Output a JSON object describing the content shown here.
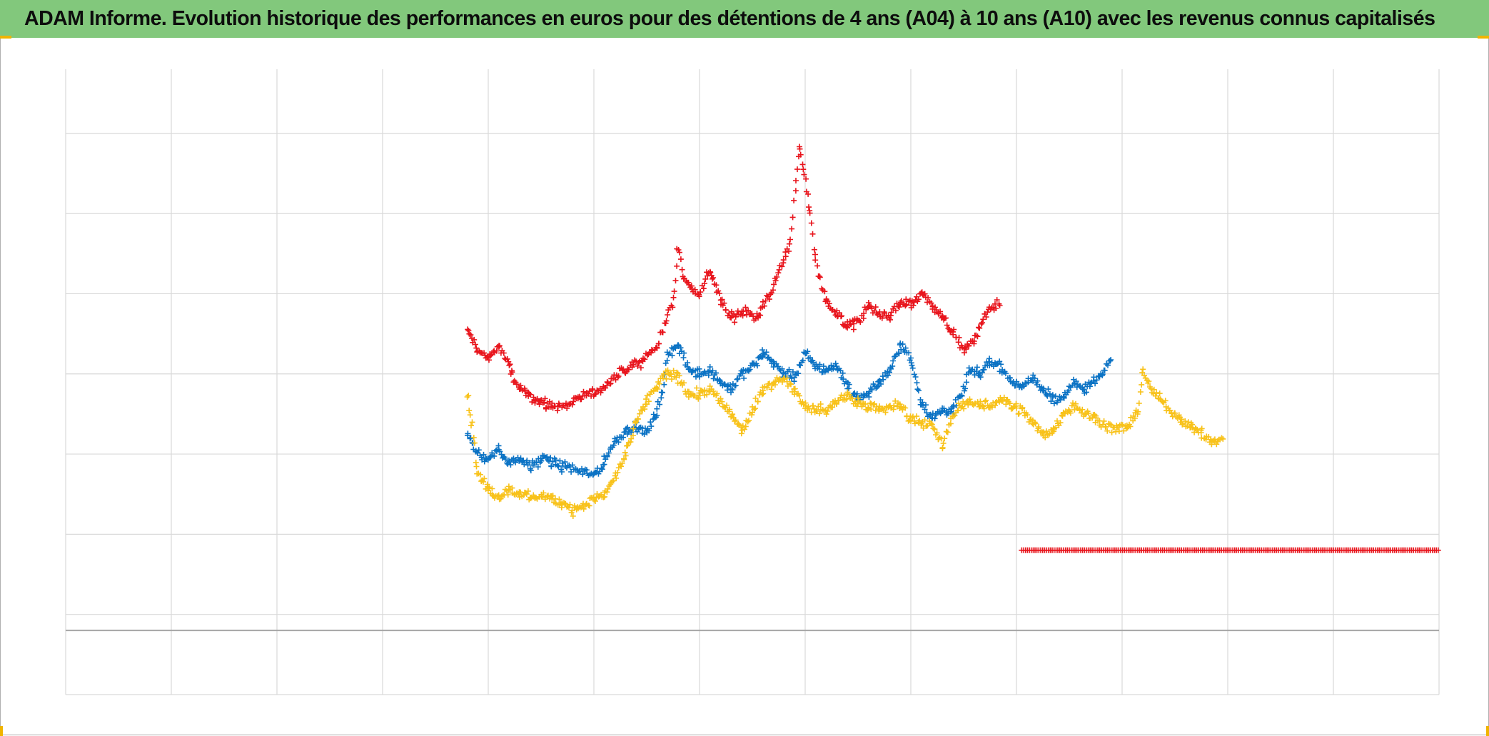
{
  "title": "ADAM Informe. Evolution historique des performances en euros pour des détentions de 4 ans (A04) à 10 ans (A10) avec les revenus connus capitalisés",
  "colors": {
    "title_bg": "#82c87c",
    "gridline": "#d9d9d9",
    "axis": "#a6a6a6",
    "corner_accent": "#f0b400"
  },
  "chart_data": {
    "type": "scatter",
    "title": "ADAM Informe. Evolution historique des performances en euros pour des détentions de 4 ans (A04) à 10 ans (A10) avec les revenus connus capitalisés",
    "xlabel": "",
    "ylabel": "",
    "tick_labels_shown": false,
    "x_grid_divisions": 13,
    "xlim": [
      0,
      13
    ],
    "ylim": [
      -0.8,
      7
    ],
    "grid": true,
    "legend": "none",
    "marker": "plus",
    "series": [
      {
        "color": "#e8141c",
        "points": [
          [
            3.8,
            3.75
          ],
          [
            3.9,
            3.5
          ],
          [
            4.0,
            3.4
          ],
          [
            4.1,
            3.55
          ],
          [
            4.2,
            3.3
          ],
          [
            4.25,
            3.1
          ],
          [
            4.35,
            2.95
          ],
          [
            4.45,
            2.9
          ],
          [
            4.55,
            2.8
          ],
          [
            4.7,
            2.8
          ],
          [
            4.85,
            2.9
          ],
          [
            5.0,
            2.95
          ],
          [
            5.15,
            3.1
          ],
          [
            5.3,
            3.25
          ],
          [
            5.45,
            3.35
          ],
          [
            5.6,
            3.55
          ],
          [
            5.75,
            4.1
          ],
          [
            5.8,
            4.8
          ],
          [
            5.85,
            4.4
          ],
          [
            5.9,
            4.3
          ],
          [
            6.0,
            4.2
          ],
          [
            6.1,
            4.5
          ],
          [
            6.2,
            4.1
          ],
          [
            6.3,
            3.9
          ],
          [
            6.45,
            4.0
          ],
          [
            6.55,
            3.9
          ],
          [
            6.7,
            4.3
          ],
          [
            6.85,
            4.8
          ],
          [
            6.95,
            6.0
          ],
          [
            7.0,
            5.6
          ],
          [
            7.05,
            5.2
          ],
          [
            7.1,
            4.6
          ],
          [
            7.2,
            4.1
          ],
          [
            7.3,
            3.95
          ],
          [
            7.4,
            3.8
          ],
          [
            7.5,
            3.85
          ],
          [
            7.6,
            4.05
          ],
          [
            7.7,
            3.95
          ],
          [
            7.8,
            3.9
          ],
          [
            7.9,
            4.1
          ],
          [
            8.0,
            4.05
          ],
          [
            8.1,
            4.2
          ],
          [
            8.2,
            4.05
          ],
          [
            8.3,
            3.9
          ],
          [
            8.4,
            3.7
          ],
          [
            8.5,
            3.5
          ],
          [
            8.6,
            3.6
          ],
          [
            8.7,
            3.95
          ],
          [
            8.85,
            4.1
          ]
        ]
      },
      {
        "color": "#0a72c4",
        "points": [
          [
            3.8,
            2.45
          ],
          [
            3.9,
            2.2
          ],
          [
            4.0,
            2.15
          ],
          [
            4.1,
            2.25
          ],
          [
            4.2,
            2.1
          ],
          [
            4.3,
            2.15
          ],
          [
            4.4,
            2.05
          ],
          [
            4.5,
            2.15
          ],
          [
            4.6,
            2.1
          ],
          [
            4.7,
            2.05
          ],
          [
            4.85,
            2.0
          ],
          [
            5.0,
            1.95
          ],
          [
            5.1,
            2.1
          ],
          [
            5.2,
            2.35
          ],
          [
            5.3,
            2.5
          ],
          [
            5.4,
            2.55
          ],
          [
            5.5,
            2.45
          ],
          [
            5.6,
            2.75
          ],
          [
            5.65,
            2.95
          ],
          [
            5.7,
            3.45
          ],
          [
            5.8,
            3.55
          ],
          [
            5.9,
            3.25
          ],
          [
            6.0,
            3.2
          ],
          [
            6.1,
            3.25
          ],
          [
            6.2,
            3.1
          ],
          [
            6.3,
            3.0
          ],
          [
            6.4,
            3.2
          ],
          [
            6.5,
            3.3
          ],
          [
            6.6,
            3.45
          ],
          [
            6.7,
            3.35
          ],
          [
            6.8,
            3.2
          ],
          [
            6.9,
            3.15
          ],
          [
            7.0,
            3.45
          ],
          [
            7.1,
            3.3
          ],
          [
            7.2,
            3.25
          ],
          [
            7.3,
            3.3
          ],
          [
            7.4,
            3.05
          ],
          [
            7.5,
            2.9
          ],
          [
            7.6,
            2.95
          ],
          [
            7.7,
            3.1
          ],
          [
            7.8,
            3.25
          ],
          [
            7.9,
            3.55
          ],
          [
            8.0,
            3.4
          ],
          [
            8.1,
            2.85
          ],
          [
            8.2,
            2.65
          ],
          [
            8.3,
            2.75
          ],
          [
            8.4,
            2.75
          ],
          [
            8.5,
            3.0
          ],
          [
            8.55,
            3.25
          ],
          [
            8.65,
            3.2
          ],
          [
            8.75,
            3.35
          ],
          [
            8.85,
            3.3
          ],
          [
            8.95,
            3.1
          ],
          [
            9.05,
            3.05
          ],
          [
            9.15,
            3.15
          ],
          [
            9.25,
            3.0
          ],
          [
            9.35,
            2.9
          ],
          [
            9.45,
            2.9
          ],
          [
            9.55,
            3.1
          ],
          [
            9.65,
            3.0
          ],
          [
            9.8,
            3.2
          ],
          [
            9.9,
            3.4
          ]
        ]
      },
      {
        "color": "#f8c21a",
        "points": [
          [
            3.8,
            2.95
          ],
          [
            3.85,
            2.55
          ],
          [
            3.9,
            1.95
          ],
          [
            4.0,
            1.75
          ],
          [
            4.1,
            1.65
          ],
          [
            4.2,
            1.75
          ],
          [
            4.3,
            1.7
          ],
          [
            4.4,
            1.65
          ],
          [
            4.5,
            1.7
          ],
          [
            4.6,
            1.65
          ],
          [
            4.7,
            1.6
          ],
          [
            4.8,
            1.5
          ],
          [
            4.9,
            1.55
          ],
          [
            5.0,
            1.65
          ],
          [
            5.1,
            1.7
          ],
          [
            5.2,
            1.9
          ],
          [
            5.3,
            2.2
          ],
          [
            5.4,
            2.6
          ],
          [
            5.5,
            2.85
          ],
          [
            5.6,
            3.05
          ],
          [
            5.7,
            3.2
          ],
          [
            5.8,
            3.15
          ],
          [
            5.9,
            2.95
          ],
          [
            6.0,
            2.95
          ],
          [
            6.1,
            3.0
          ],
          [
            6.2,
            2.85
          ],
          [
            6.3,
            2.7
          ],
          [
            6.4,
            2.5
          ],
          [
            6.5,
            2.75
          ],
          [
            6.6,
            3.0
          ],
          [
            6.7,
            3.1
          ],
          [
            6.8,
            3.15
          ],
          [
            6.9,
            3.0
          ],
          [
            7.0,
            2.8
          ],
          [
            7.1,
            2.75
          ],
          [
            7.2,
            2.75
          ],
          [
            7.3,
            2.85
          ],
          [
            7.4,
            2.95
          ],
          [
            7.5,
            2.85
          ],
          [
            7.6,
            2.8
          ],
          [
            7.7,
            2.75
          ],
          [
            7.8,
            2.8
          ],
          [
            7.9,
            2.8
          ],
          [
            8.0,
            2.65
          ],
          [
            8.1,
            2.6
          ],
          [
            8.2,
            2.55
          ],
          [
            8.3,
            2.3
          ],
          [
            8.35,
            2.5
          ],
          [
            8.45,
            2.8
          ],
          [
            8.55,
            2.85
          ],
          [
            8.65,
            2.8
          ],
          [
            8.75,
            2.8
          ],
          [
            8.85,
            2.9
          ],
          [
            8.95,
            2.8
          ],
          [
            9.05,
            2.75
          ],
          [
            9.15,
            2.6
          ],
          [
            9.25,
            2.45
          ],
          [
            9.35,
            2.5
          ],
          [
            9.45,
            2.7
          ],
          [
            9.55,
            2.8
          ],
          [
            9.65,
            2.7
          ],
          [
            9.75,
            2.65
          ],
          [
            9.85,
            2.55
          ],
          [
            9.95,
            2.5
          ],
          [
            10.05,
            2.55
          ],
          [
            10.15,
            2.75
          ],
          [
            10.2,
            3.25
          ],
          [
            10.25,
            3.05
          ],
          [
            10.35,
            2.9
          ],
          [
            10.45,
            2.75
          ],
          [
            10.55,
            2.65
          ],
          [
            10.65,
            2.55
          ],
          [
            10.75,
            2.45
          ],
          [
            10.85,
            2.35
          ],
          [
            10.95,
            2.4
          ]
        ]
      },
      {
        "color": "#e8141c",
        "points": [
          [
            9.05,
            1.0
          ],
          [
            13.0,
            1.0
          ]
        ],
        "constant": true
      }
    ]
  }
}
